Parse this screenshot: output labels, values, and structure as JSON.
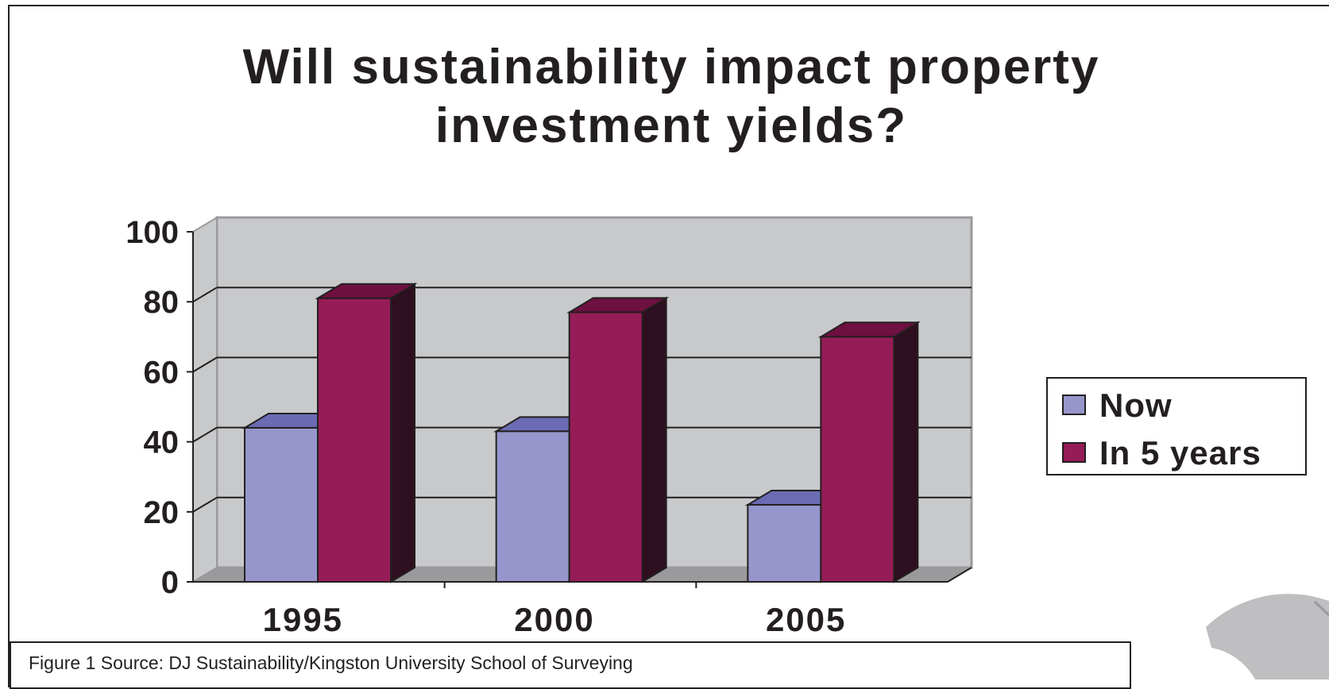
{
  "chart_data": {
    "type": "bar",
    "style": "3d-clustered-column",
    "title": "Will sustainability impact property investment yields?",
    "categories": [
      "1995",
      "2000",
      "2005"
    ],
    "series": [
      {
        "name": "Now",
        "values": [
          44,
          43,
          22
        ],
        "color": "#9696cc",
        "top_color": "#6b6bb4"
      },
      {
        "name": "In 5 years",
        "values": [
          81,
          77,
          70
        ],
        "color": "#961c57",
        "top_color": "#6e1040",
        "side_color": "#2e0f1f"
      }
    ],
    "ylim": [
      0,
      100
    ],
    "yticks": [
      "0",
      "20",
      "40",
      "60",
      "80",
      "100"
    ],
    "grid": true,
    "legend_position": "right",
    "wall_color": "#c8c9cb",
    "floor_color": "#9a9a9c"
  },
  "caption": "Figure 1 Source: DJ Sustainability/Kingston University School of Surveying"
}
